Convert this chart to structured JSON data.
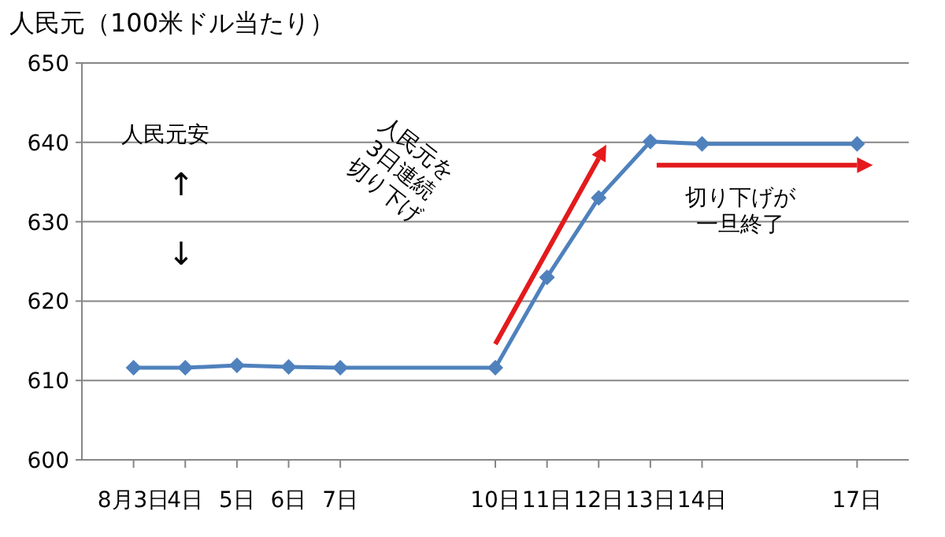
{
  "chart_data": {
    "type": "line",
    "title": "人民元（100米ドル当たり）",
    "x": [
      "--08-03",
      "--08-04",
      "--08-05",
      "--08-06",
      "--08-07",
      "--08-10",
      "--08-11",
      "--08-12",
      "--08-13",
      "--08-14",
      "--08-17"
    ],
    "series": [
      {
        "color": "#4f81bd",
        "values": [
          611.6,
          611.6,
          611.9,
          611.7,
          611.6,
          611.6,
          623.0,
          633.0,
          640.1,
          639.8,
          639.8
        ]
      }
    ],
    "xlim": [
      "--08-02",
      "--08-18"
    ],
    "xticks": [
      {
        "value": "--08-03",
        "label": "8月3日"
      },
      {
        "value": "--08-04",
        "label": "4日"
      },
      {
        "value": "--08-05",
        "label": "5日"
      },
      {
        "value": "--08-06",
        "label": "6日"
      },
      {
        "value": "--08-07",
        "label": "7日"
      },
      {
        "value": "--08-10",
        "label": "10日"
      },
      {
        "value": "--08-11",
        "label": "11日"
      },
      {
        "value": "--08-12",
        "label": "12日"
      },
      {
        "value": "--08-13",
        "label": "13日"
      },
      {
        "value": "--08-14",
        "label": "14日"
      },
      {
        "value": "--08-17",
        "label": "17日"
      }
    ],
    "ylim": [
      600,
      650
    ],
    "yticks": [
      600,
      610,
      620,
      630,
      640,
      650
    ],
    "grid": "y",
    "marker": "diamond",
    "annotations": [
      "人民元安",
      "↑",
      "↓",
      "人民元を3日連続切り下げ",
      "切り下げが一旦終了"
    ]
  }
}
